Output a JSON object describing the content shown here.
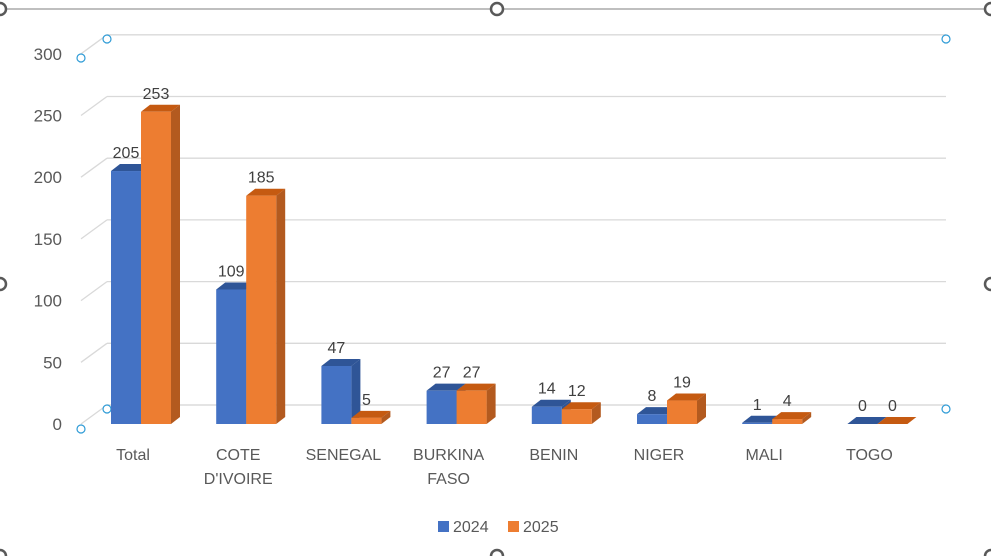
{
  "chart_data": {
    "type": "bar",
    "title": "",
    "xlabel": "",
    "ylabel": "",
    "ylim": [
      0,
      300
    ],
    "yticks": [
      "0",
      "50",
      "100",
      "150",
      "200",
      "250",
      "300"
    ],
    "categories": [
      [
        "Total"
      ],
      [
        "COTE",
        "D'IVOIRE"
      ],
      [
        "SENEGAL"
      ],
      [
        "BURKINA",
        "FASO"
      ],
      [
        "BENIN"
      ],
      [
        "NIGER"
      ],
      [
        "MALI"
      ],
      [
        "TOGO"
      ]
    ],
    "series": [
      {
        "name": "2024",
        "values": [
          205,
          109,
          47,
          27,
          14,
          8,
          1,
          0
        ],
        "color": "#4472C4",
        "side_color": "#2F5597",
        "top_color": "#2F5597"
      },
      {
        "name": "2025",
        "values": [
          253,
          185,
          5,
          27,
          12,
          19,
          4,
          0
        ],
        "color": "#ED7D31",
        "side_color": "#B35A1F",
        "top_color": "#C55A11"
      }
    ],
    "data_labels": [
      [
        "205",
        "109",
        "47",
        "27",
        "14",
        "8",
        "1",
        "0"
      ],
      [
        "253",
        "185",
        "5",
        "27",
        "12",
        "19",
        "4",
        "0"
      ]
    ],
    "grid": true,
    "legend": "bottom-center",
    "style": "3d-clustered-column"
  }
}
